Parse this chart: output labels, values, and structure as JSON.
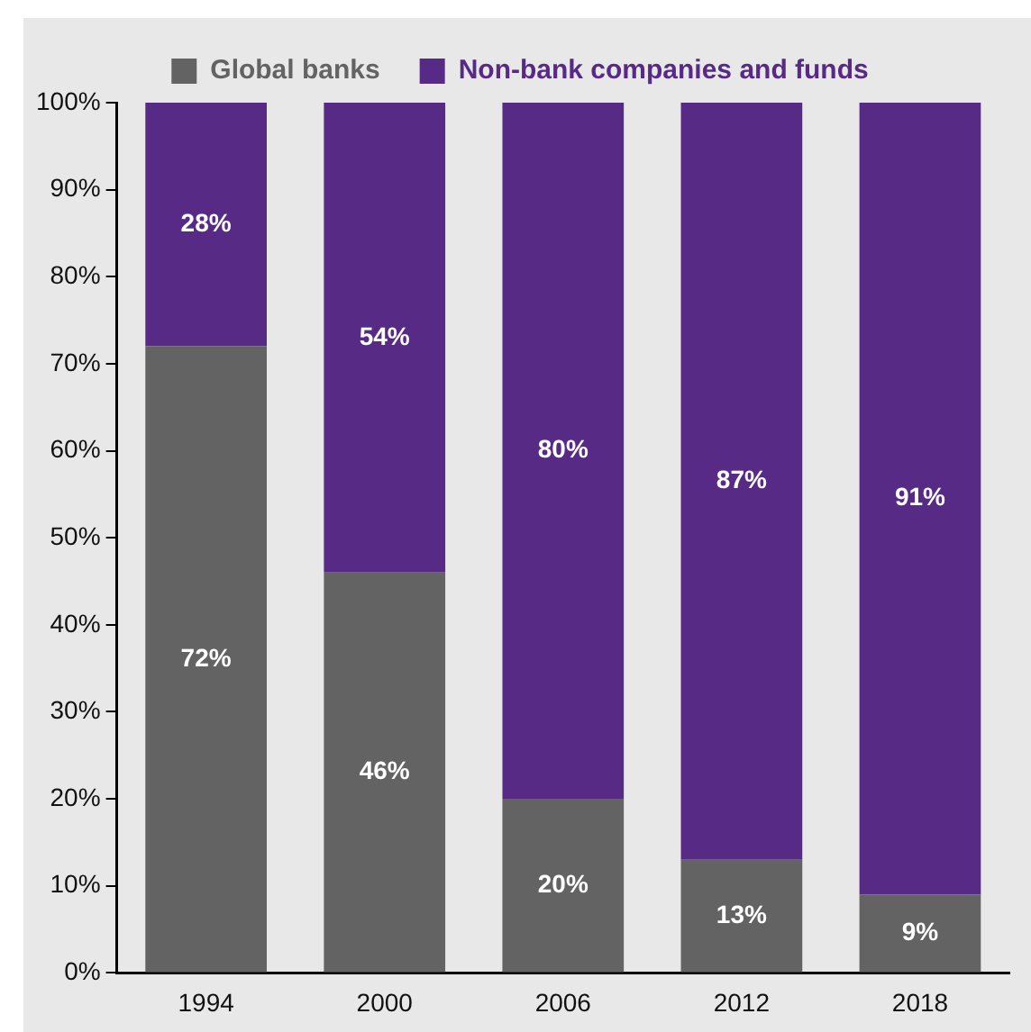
{
  "chart_data": {
    "type": "bar",
    "stacked": true,
    "categories": [
      "1994",
      "2000",
      "2006",
      "2012",
      "2018"
    ],
    "series": [
      {
        "name": "Global banks",
        "color": "#636363",
        "values": [
          72,
          46,
          20,
          13,
          9
        ],
        "value_labels": [
          "72%",
          "46%",
          "20%",
          "13%",
          "9%"
        ]
      },
      {
        "name": "Non-bank companies and funds",
        "color": "#572a85",
        "values": [
          28,
          54,
          80,
          87,
          91
        ],
        "value_labels": [
          "28%",
          "54%",
          "80%",
          "87%",
          "91%"
        ]
      }
    ],
    "ylim": [
      0,
      100
    ],
    "yticks": [
      {
        "value": 0,
        "label": "0%"
      },
      {
        "value": 10,
        "label": "10%"
      },
      {
        "value": 20,
        "label": "20%"
      },
      {
        "value": 30,
        "label": "30%"
      },
      {
        "value": 40,
        "label": "40%"
      },
      {
        "value": 50,
        "label": "50%"
      },
      {
        "value": 60,
        "label": "60%"
      },
      {
        "value": 70,
        "label": "70%"
      },
      {
        "value": 80,
        "label": "80%"
      },
      {
        "value": 90,
        "label": "90%"
      },
      {
        "value": 100,
        "label": "100%"
      }
    ],
    "legend": "top",
    "grid": false
  }
}
